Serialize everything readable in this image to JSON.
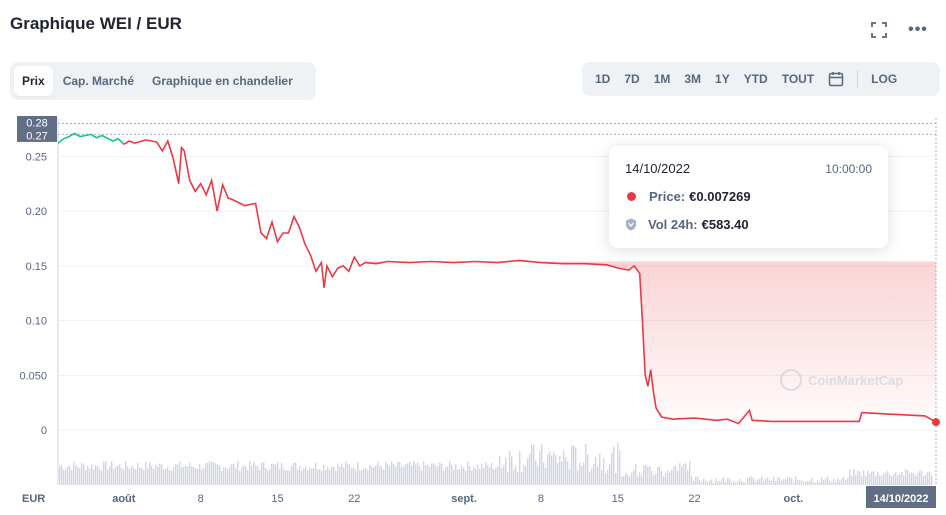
{
  "header": {
    "title": "Graphique WEI / EUR",
    "more_label": "•••"
  },
  "tabs": [
    {
      "label": "Prix",
      "active": true
    },
    {
      "label": "Cap. Marché",
      "active": false
    },
    {
      "label": "Graphique en chandelier",
      "active": false
    }
  ],
  "ranges": [
    "1D",
    "7D",
    "1M",
    "3M",
    "1Y",
    "YTD",
    "TOUT"
  ],
  "log_label": "LOG",
  "tooltip": {
    "date": "14/10/2022",
    "time": "10:00:00",
    "price_label": "Price:",
    "price_value": "€0.007269",
    "volume_label": "Vol 24h:",
    "volume_value": "€583.40"
  },
  "watermark": "CoinMarketCap",
  "colors": {
    "up": "#16c784",
    "down": "#ea3943",
    "volume": "#cfd6e4",
    "grid": "#eff2f5",
    "axis_text": "#58667e",
    "badge": "#616e85"
  },
  "chart_data": {
    "type": "line",
    "currency_label": "EUR",
    "ylim": [
      -0.03,
      0.285
    ],
    "y_ticks": [
      0,
      0.05,
      0.1,
      0.15,
      0.2,
      0.25
    ],
    "y_tick_labels": [
      "0",
      "0.050",
      "0.10",
      "0.15",
      "0.20",
      "0.25"
    ],
    "reference_lines": [
      {
        "value": 0.28,
        "label": "0.28"
      },
      {
        "value": 0.27,
        "label": "0.27"
      }
    ],
    "x_ticks": [
      {
        "date": "2022-08-01",
        "label": "août"
      },
      {
        "date": "2022-08-08",
        "label": "8"
      },
      {
        "date": "2022-08-15",
        "label": "15"
      },
      {
        "date": "2022-08-22",
        "label": "22"
      },
      {
        "date": "2022-09-01",
        "label": "sept."
      },
      {
        "date": "2022-09-08",
        "label": "8"
      },
      {
        "date": "2022-09-15",
        "label": "15"
      },
      {
        "date": "2022-09-22",
        "label": "22"
      },
      {
        "date": "2022-10-01",
        "label": "oct."
      }
    ],
    "current_x_label": "14/10/2022",
    "x_range": [
      "2022-07-26",
      "2022-10-14"
    ],
    "points": [
      [
        "2022-07-26",
        0.262
      ],
      [
        "2022-07-26T12:00",
        0.266
      ],
      [
        "2022-07-27",
        0.268
      ],
      [
        "2022-07-27T12:00",
        0.271
      ],
      [
        "2022-07-28",
        0.268
      ],
      [
        "2022-07-29",
        0.27
      ],
      [
        "2022-07-29T12:00",
        0.267
      ],
      [
        "2022-07-30",
        0.269
      ],
      [
        "2022-07-31",
        0.264
      ],
      [
        "2022-07-31T12:00",
        0.266
      ],
      [
        "2022-08-01",
        0.261
      ],
      [
        "2022-08-01T12:00",
        0.264
      ],
      [
        "2022-08-02",
        0.262
      ],
      [
        "2022-08-03",
        0.265
      ],
      [
        "2022-08-04",
        0.263
      ],
      [
        "2022-08-04T12:00",
        0.255
      ],
      [
        "2022-08-05",
        0.264
      ],
      [
        "2022-08-05T12:00",
        0.248
      ],
      [
        "2022-08-06",
        0.225
      ],
      [
        "2022-08-06T06:00",
        0.258
      ],
      [
        "2022-08-06T12:00",
        0.255
      ],
      [
        "2022-08-07",
        0.228
      ],
      [
        "2022-08-07T12:00",
        0.218
      ],
      [
        "2022-08-08",
        0.225
      ],
      [
        "2022-08-08T12:00",
        0.215
      ],
      [
        "2022-08-09",
        0.228
      ],
      [
        "2022-08-09T12:00",
        0.2
      ],
      [
        "2022-08-10",
        0.224
      ],
      [
        "2022-08-10T12:00",
        0.212
      ],
      [
        "2022-08-11",
        0.21
      ],
      [
        "2022-08-12",
        0.205
      ],
      [
        "2022-08-12T12:00",
        0.206
      ],
      [
        "2022-08-13",
        0.207
      ],
      [
        "2022-08-13T12:00",
        0.18
      ],
      [
        "2022-08-14",
        0.175
      ],
      [
        "2022-08-14T12:00",
        0.19
      ],
      [
        "2022-08-15",
        0.172
      ],
      [
        "2022-08-15T12:00",
        0.18
      ],
      [
        "2022-08-16",
        0.18
      ],
      [
        "2022-08-16T12:00",
        0.195
      ],
      [
        "2022-08-17",
        0.185
      ],
      [
        "2022-08-17T12:00",
        0.17
      ],
      [
        "2022-08-18",
        0.16
      ],
      [
        "2022-08-18T12:00",
        0.145
      ],
      [
        "2022-08-19",
        0.153
      ],
      [
        "2022-08-19T06:00",
        0.13
      ],
      [
        "2022-08-19T12:00",
        0.15
      ],
      [
        "2022-08-20",
        0.14
      ],
      [
        "2022-08-20T12:00",
        0.148
      ],
      [
        "2022-08-21",
        0.15
      ],
      [
        "2022-08-21T12:00",
        0.145
      ],
      [
        "2022-08-22",
        0.158
      ],
      [
        "2022-08-22T12:00",
        0.15
      ],
      [
        "2022-08-23",
        0.153
      ],
      [
        "2022-08-24",
        0.152
      ],
      [
        "2022-08-25",
        0.154
      ],
      [
        "2022-08-27",
        0.153
      ],
      [
        "2022-08-29",
        0.154
      ],
      [
        "2022-08-31",
        0.153
      ],
      [
        "2022-09-02",
        0.154
      ],
      [
        "2022-09-04",
        0.153
      ],
      [
        "2022-09-06",
        0.155
      ],
      [
        "2022-09-08",
        0.153
      ],
      [
        "2022-09-10",
        0.152
      ],
      [
        "2022-09-12",
        0.152
      ],
      [
        "2022-09-14",
        0.151
      ],
      [
        "2022-09-15",
        0.148
      ],
      [
        "2022-09-16",
        0.146
      ],
      [
        "2022-09-16T12:00",
        0.15
      ],
      [
        "2022-09-17",
        0.143
      ],
      [
        "2022-09-17T06:00",
        0.1
      ],
      [
        "2022-09-17T12:00",
        0.05
      ],
      [
        "2022-09-17T18:00",
        0.04
      ],
      [
        "2022-09-18",
        0.055
      ],
      [
        "2022-09-18T06:00",
        0.035
      ],
      [
        "2022-09-18T12:00",
        0.02
      ],
      [
        "2022-09-19",
        0.012
      ],
      [
        "2022-09-20",
        0.01
      ],
      [
        "2022-09-22",
        0.011
      ],
      [
        "2022-09-24",
        0.009
      ],
      [
        "2022-09-25",
        0.01
      ],
      [
        "2022-09-26",
        0.006
      ],
      [
        "2022-09-27",
        0.018
      ],
      [
        "2022-09-27T06:00",
        0.009
      ],
      [
        "2022-09-29",
        0.008
      ],
      [
        "2022-10-01",
        0.008
      ],
      [
        "2022-10-03",
        0.008
      ],
      [
        "2022-10-05",
        0.008
      ],
      [
        "2022-10-07",
        0.008
      ],
      [
        "2022-10-07T06:00",
        0.016
      ],
      [
        "2022-10-09",
        0.015
      ],
      [
        "2022-10-11",
        0.014
      ],
      [
        "2022-10-13",
        0.013
      ],
      [
        "2022-10-14",
        0.007269
      ]
    ],
    "up_until": "2022-08-01",
    "grid": true
  }
}
